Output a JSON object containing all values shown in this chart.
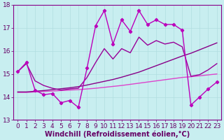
{
  "xlabel": "Windchill (Refroidissement éolien,°C)",
  "background_color": "#c8eef0",
  "grid_color": "#b0dde0",
  "xlim": [
    -0.5,
    23.5
  ],
  "ylim": [
    13,
    18
  ],
  "yticks": [
    13,
    14,
    15,
    16,
    17,
    18
  ],
  "xticks": [
    0,
    1,
    2,
    3,
    4,
    5,
    6,
    7,
    8,
    9,
    10,
    11,
    12,
    13,
    14,
    15,
    16,
    17,
    18,
    19,
    20,
    21,
    22,
    23
  ],
  "s1_x": [
    0,
    1,
    2,
    3,
    4,
    5,
    6,
    7,
    8,
    9,
    10,
    11,
    12,
    13,
    14,
    15,
    16,
    17,
    18,
    19,
    20,
    21,
    22,
    23
  ],
  "s1_y": [
    15.1,
    15.5,
    14.3,
    14.1,
    14.15,
    13.75,
    13.85,
    13.55,
    15.25,
    17.1,
    17.75,
    16.3,
    17.35,
    16.85,
    17.75,
    17.15,
    17.35,
    17.15,
    17.15,
    16.9,
    13.65,
    14.0,
    14.35,
    14.65
  ],
  "s1_color": "#bb00bb",
  "s2_x": [
    0,
    1,
    2,
    3,
    4,
    5,
    6,
    7,
    8,
    9,
    10,
    11,
    12,
    13,
    14,
    15,
    16,
    17,
    18,
    19,
    20,
    21,
    22,
    23
  ],
  "s2_y": [
    14.22,
    14.22,
    14.25,
    14.28,
    14.32,
    14.36,
    14.4,
    14.45,
    14.52,
    14.6,
    14.68,
    14.76,
    14.86,
    14.97,
    15.08,
    15.22,
    15.36,
    15.5,
    15.64,
    15.78,
    15.9,
    16.05,
    16.2,
    16.35
  ],
  "s2_color": "#880088",
  "s3_x": [
    0,
    1,
    2,
    3,
    4,
    5,
    6,
    7,
    8,
    9,
    10,
    11,
    12,
    13,
    14,
    15,
    16,
    17,
    18,
    19,
    20,
    21,
    22,
    23
  ],
  "s3_y": [
    14.2,
    14.2,
    14.22,
    14.24,
    14.26,
    14.28,
    14.3,
    14.32,
    14.35,
    14.38,
    14.42,
    14.46,
    14.5,
    14.55,
    14.6,
    14.65,
    14.7,
    14.75,
    14.8,
    14.85,
    14.88,
    14.92,
    14.96,
    15.0
  ],
  "s3_color": "#dd44cc",
  "s4_x": [
    0,
    1,
    2,
    3,
    4,
    5,
    6,
    7,
    8,
    9,
    10,
    11,
    12,
    13,
    14,
    15,
    16,
    17,
    18,
    19,
    20,
    21,
    22,
    23
  ],
  "s4_y": [
    15.1,
    15.45,
    14.7,
    14.5,
    14.38,
    14.3,
    14.35,
    14.38,
    14.85,
    15.5,
    16.1,
    15.65,
    16.1,
    15.92,
    16.6,
    16.25,
    16.45,
    16.3,
    16.38,
    16.18,
    14.9,
    14.97,
    15.18,
    15.45
  ],
  "s4_color": "#990099",
  "xlabel_fontsize": 7,
  "tick_fontsize": 6.5,
  "linewidth": 1.0,
  "marker": "D",
  "markersize": 2.2
}
